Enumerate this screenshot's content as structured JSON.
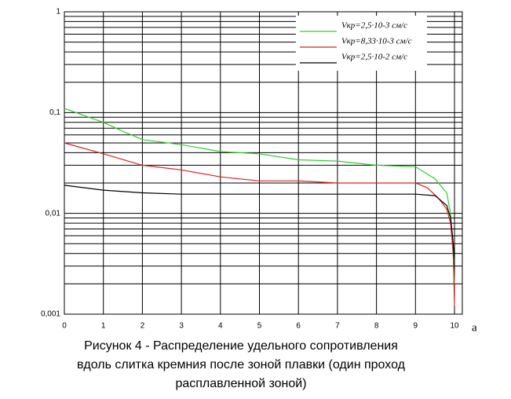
{
  "chart_data": {
    "type": "line",
    "title": [
      "Рисунок 4 - Распределение удельного сопротивления",
      "вдоль слитка кремния после зоной плавки (один проход",
      "расплавленной зоной)"
    ],
    "x_label": "a",
    "log_y": true,
    "grid": true,
    "legend": "top-right",
    "xlim": [
      0,
      10.2
    ],
    "xticks": [
      0,
      1,
      2,
      3,
      4,
      5,
      6,
      7,
      8,
      9,
      10
    ],
    "ylim": [
      0.001,
      1
    ],
    "yticks": [
      {
        "value": 0.001,
        "label": "0,001"
      },
      {
        "value": 0.01,
        "label": "0,01"
      },
      {
        "value": 0.1,
        "label": "0,1"
      },
      1
    ],
    "yminorticks": [
      0.002,
      0.003,
      0.004,
      0.005,
      0.006,
      0.007,
      0.008,
      0.009,
      0.02,
      0.03,
      0.04,
      0.05,
      0.06,
      0.07,
      0.08,
      0.09,
      0.2,
      0.3,
      0.4,
      0.5,
      0.6,
      0.7,
      0.8,
      0.9
    ],
    "series": [
      {
        "name": "Vкр=2,5·10-3 см/с",
        "color": "#33cc33",
        "x": [
          0,
          1,
          1.5,
          2,
          3,
          4,
          5,
          6,
          7,
          8,
          9,
          9.2,
          9.5,
          9.8,
          9.9,
          9.95,
          10
        ],
        "values": [
          0.11,
          0.08,
          0.065,
          0.054,
          0.048,
          0.041,
          0.039,
          0.034,
          0.033,
          0.03,
          0.029,
          0.026,
          0.022,
          0.016,
          0.01,
          0.005,
          0.002
        ]
      },
      {
        "name": "Vкр=8,33·10-3 см/с",
        "color": "#dd2222",
        "x": [
          0,
          1,
          2,
          3,
          4,
          5,
          6,
          7,
          8,
          9,
          9.3,
          9.6,
          9.8,
          9.9,
          9.97,
          10
        ],
        "values": [
          0.05,
          0.039,
          0.03,
          0.027,
          0.023,
          0.021,
          0.021,
          0.02,
          0.02,
          0.02,
          0.018,
          0.014,
          0.011,
          0.008,
          0.004,
          0.0012
        ]
      },
      {
        "name": "Vкр=2,5·10-2 см/с",
        "color": "#000000",
        "x": [
          0,
          1,
          2,
          3,
          4,
          5,
          6,
          7,
          8,
          9,
          9.5,
          9.8,
          9.9,
          9.95,
          10
        ],
        "values": [
          0.019,
          0.017,
          0.016,
          0.0155,
          0.0155,
          0.0155,
          0.0155,
          0.0155,
          0.0155,
          0.0155,
          0.015,
          0.012,
          0.009,
          0.006,
          0.0035
        ]
      }
    ]
  }
}
